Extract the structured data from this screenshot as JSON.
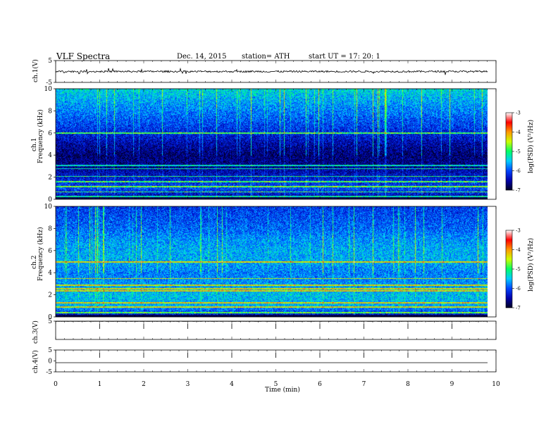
{
  "header": {
    "title": "VLF  Spectra",
    "date": "Dec. 14,  2015",
    "station": "station= ATH",
    "start": "start  UT  =    17: 20: 1"
  },
  "chart_data": [
    {
      "type": "line",
      "panel": "ch1-waveform",
      "ylabel": "ch.1(V)",
      "ytick_labels": [
        "5",
        "-5"
      ],
      "ylim": [
        -5,
        5
      ],
      "baseline": 0.0,
      "noise_amplitude": 0.4
    },
    {
      "type": "heatmap",
      "panel": "ch1-spectrogram",
      "ylabel": [
        "ch.1",
        "Frequency  (kHz)"
      ],
      "ylim": [
        0,
        10
      ],
      "ytick_labels": [
        "0",
        "2",
        "4",
        "6",
        "8",
        "10"
      ],
      "colorbar": {
        "label": "log(PSD) (V²/Hz)",
        "range": [
          -7,
          -3
        ],
        "tick_labels": [
          "-3",
          "-4",
          "-5",
          "-6",
          "-7"
        ]
      },
      "profile": [
        {
          "freq": 0.0,
          "level": -6.8
        },
        {
          "freq": 0.5,
          "level": -6.3
        },
        {
          "freq": 1.0,
          "level": -6.0
        },
        {
          "freq": 2.0,
          "level": -6.3
        },
        {
          "freq": 3.0,
          "level": -6.6
        },
        {
          "freq": 4.0,
          "level": -6.7
        },
        {
          "freq": 5.0,
          "level": -6.5
        },
        {
          "freq": 6.0,
          "level": -6.2
        },
        {
          "freq": 7.0,
          "level": -6.0
        },
        {
          "freq": 8.0,
          "level": -5.8
        },
        {
          "freq": 9.0,
          "level": -5.6
        },
        {
          "freq": 10.0,
          "level": -5.4
        }
      ],
      "lines_khz": [
        0.3,
        0.7,
        1.2,
        1.6,
        2.1,
        2.8,
        3.1,
        6.0
      ]
    },
    {
      "type": "heatmap",
      "panel": "ch2-spectrogram",
      "ylabel": [
        "ch.2",
        "Frequency  (kHz)"
      ],
      "ylim": [
        0,
        10
      ],
      "ytick_labels": [
        "0",
        "2",
        "4",
        "6",
        "8",
        "10"
      ],
      "colorbar": {
        "label": "log(PSD) (V²/Hz)",
        "range": [
          -7,
          -3
        ],
        "tick_labels": [
          "-3",
          "-4",
          "-5",
          "-6",
          "-7"
        ]
      },
      "profile": [
        {
          "freq": 0.0,
          "level": -6.6
        },
        {
          "freq": 0.5,
          "level": -6.0
        },
        {
          "freq": 1.0,
          "level": -5.6
        },
        {
          "freq": 2.0,
          "level": -5.5
        },
        {
          "freq": 3.0,
          "level": -5.7
        },
        {
          "freq": 4.0,
          "level": -5.8
        },
        {
          "freq": 5.0,
          "level": -5.6
        },
        {
          "freq": 6.0,
          "level": -5.6
        },
        {
          "freq": 7.0,
          "level": -5.7
        },
        {
          "freq": 8.0,
          "level": -5.9
        },
        {
          "freq": 9.0,
          "level": -6.0
        },
        {
          "freq": 10.0,
          "level": -6.1
        }
      ],
      "lines_khz": [
        0.4,
        0.9,
        1.3,
        2.4,
        2.6,
        2.9,
        3.5,
        5.0
      ]
    },
    {
      "type": "line",
      "panel": "ch3-waveform",
      "ylabel": "ch.3(V)",
      "ytick_labels": [
        "5"
      ],
      "ylim": [
        -5,
        5
      ],
      "baseline": 4.9,
      "noise_amplitude": 0.05
    },
    {
      "type": "line",
      "panel": "ch4-waveform",
      "ylabel": "ch.4(V)",
      "ytick_labels": [
        "5",
        "0",
        "-5"
      ],
      "ylim": [
        -5,
        5
      ],
      "baseline": -0.8,
      "noise_amplitude": 0.0
    }
  ],
  "xaxis": {
    "label": "Time  (min)",
    "xlim": [
      0,
      10
    ],
    "tick_labels": [
      "0",
      "1",
      "2",
      "3",
      "4",
      "5",
      "6",
      "7",
      "8",
      "9",
      "10"
    ],
    "data_end": 9.8
  },
  "colors": {
    "colormap": [
      "#000022",
      "#0000aa",
      "#0044ff",
      "#00ccff",
      "#00ff66",
      "#ccff00",
      "#ff9900",
      "#ff0000",
      "#ffffff"
    ]
  }
}
